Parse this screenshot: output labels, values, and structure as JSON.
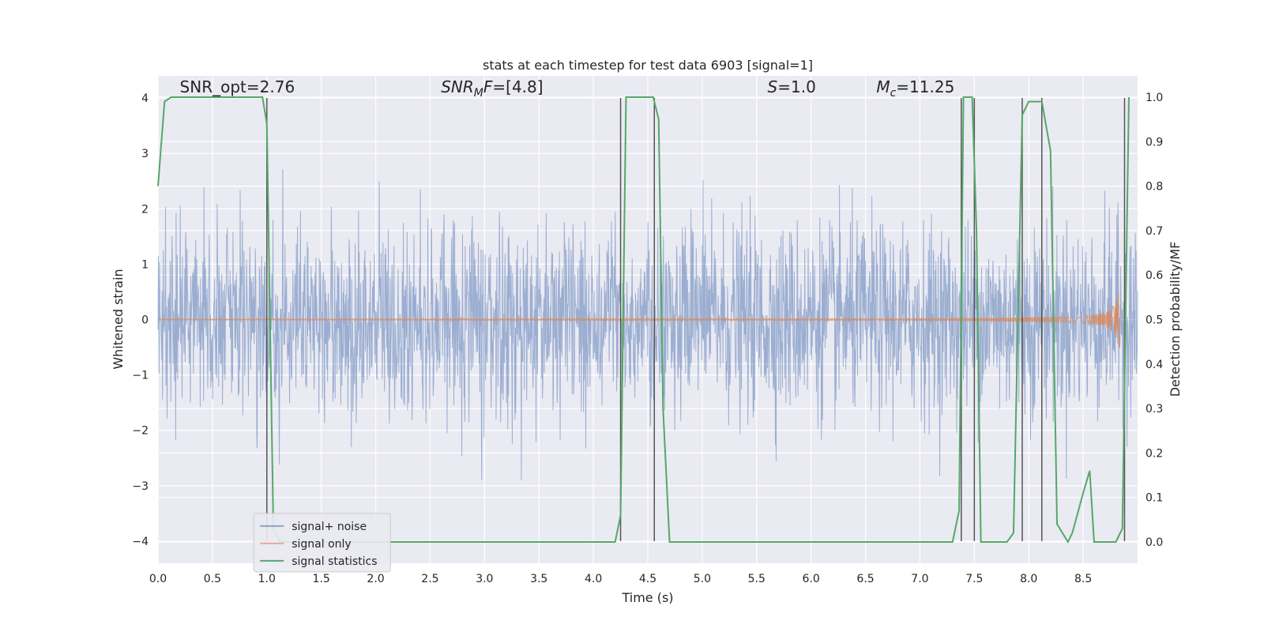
{
  "chart_data": {
    "type": "line",
    "title": "stats at each timestep for test data 6903 [signal=1]",
    "xlabel": "Time (s)",
    "ylabel_left": "Whitened strain",
    "ylabel_right": "Detection probability/MF",
    "xlim": [
      0.0,
      9.0
    ],
    "ylim_left": [
      -4.4,
      4.4
    ],
    "ylim_right": [
      -0.048,
      1.048
    ],
    "xticks": [
      "0.0",
      "0.5",
      "1.0",
      "1.5",
      "2.0",
      "2.5",
      "3.0",
      "3.5",
      "4.0",
      "4.5",
      "5.0",
      "5.5",
      "6.0",
      "6.5",
      "7.0",
      "7.5",
      "8.0",
      "8.5"
    ],
    "yticks_left": [
      "−4",
      "−3",
      "−2",
      "−1",
      "0",
      "1",
      "2",
      "3",
      "4"
    ],
    "yticks_right": [
      "0.0",
      "0.1",
      "0.2",
      "0.3",
      "0.4",
      "0.5",
      "0.6",
      "0.7",
      "0.8",
      "0.9",
      "1.0"
    ],
    "grid": true,
    "annotations": [
      {
        "text": "SNR_opt=2.76",
        "x": 0.2,
        "y": 4.1
      },
      {
        "text": "SNR",
        "sub": "M",
        "suffix": "F=[4.8]",
        "italic": true,
        "x": 2.6,
        "y": 4.1
      },
      {
        "text": "S",
        "suffix": "=1.0",
        "italic": true,
        "x": 5.6,
        "y": 4.1
      },
      {
        "text": "M",
        "sub": "c",
        "suffix": "=11.25",
        "italic": true,
        "x": 6.6,
        "y": 4.1
      }
    ],
    "vertical_lines_x": [
      1.0,
      4.25,
      4.56,
      7.38,
      7.5,
      7.94,
      8.12,
      8.88
    ],
    "series": [
      {
        "name": "signal+ noise",
        "color": "#4c72b0",
        "kind": "noise",
        "envelope_sigma": 0.85,
        "peak_max": 3.75,
        "peak_min": -3.95
      },
      {
        "name": "signal only",
        "color": "#dd8452",
        "kind": "chirp",
        "amplitude_at_end": 0.55,
        "end_x": 8.84
      },
      {
        "name": "signal statistics",
        "color": "#55a868",
        "axis": "right",
        "x": [
          0.0,
          0.06,
          0.12,
          0.3,
          0.6,
          0.9,
          0.96,
          1.0,
          1.06,
          1.12,
          1.2,
          1.5,
          2.0,
          3.0,
          4.0,
          4.2,
          4.25,
          4.3,
          4.35,
          4.45,
          4.55,
          4.6,
          4.64,
          4.7,
          5.0,
          6.0,
          7.0,
          7.3,
          7.36,
          7.4,
          7.44,
          7.48,
          7.52,
          7.56,
          7.62,
          7.8,
          7.86,
          7.94,
          8.0,
          8.06,
          8.12,
          8.2,
          8.26,
          8.36,
          8.4,
          8.5,
          8.56,
          8.6,
          8.7,
          8.8,
          8.86,
          8.92
        ],
        "y": [
          0.8,
          0.99,
          1.0,
          1.0,
          1.0,
          1.0,
          1.0,
          0.94,
          0.03,
          0.0,
          0.0,
          0.0,
          0.0,
          0.0,
          0.0,
          0.0,
          0.06,
          1.0,
          1.0,
          1.0,
          1.0,
          0.95,
          0.3,
          0.0,
          0.0,
          0.0,
          0.0,
          0.0,
          0.07,
          1.0,
          1.0,
          1.0,
          0.7,
          0.0,
          0.0,
          0.0,
          0.02,
          0.96,
          0.99,
          0.99,
          0.99,
          0.88,
          0.04,
          0.0,
          0.02,
          0.11,
          0.16,
          0.0,
          0.0,
          0.0,
          0.03,
          1.0
        ]
      }
    ],
    "legend": {
      "placement": "lower-left",
      "entries": [
        "signal+ noise",
        "signal only",
        "signal statistics"
      ]
    },
    "colors": {
      "plot_bg": "#eaeaf2",
      "grid": "#ffffff",
      "vline": "#555555"
    }
  }
}
